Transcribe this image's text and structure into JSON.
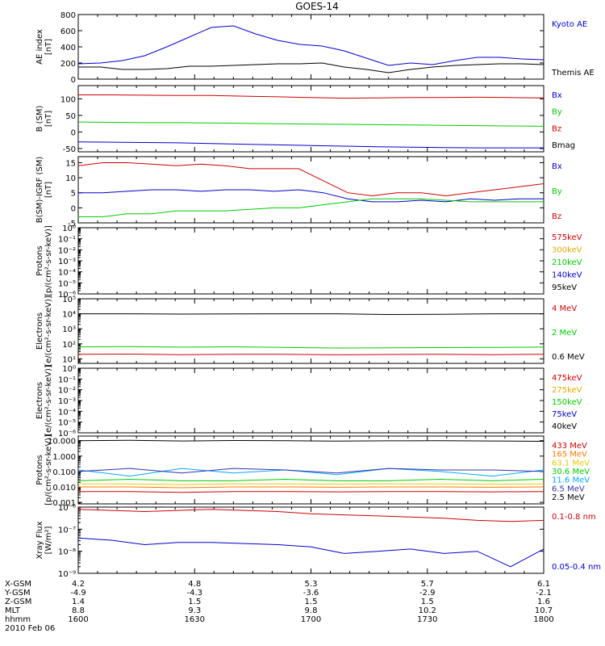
{
  "title": "GOES-14",
  "panels": [
    {
      "ylabel": [
        "AE index",
        "[nT]"
      ],
      "scale": "linear",
      "ylim": [
        0,
        800
      ],
      "ticks": [
        0,
        200,
        400,
        600,
        800
      ],
      "tick_labels": [
        "0",
        "200",
        "400",
        "600",
        "800"
      ],
      "series": [
        {
          "name": "Kyoto AE",
          "color": "#0000cc",
          "label_row": 0,
          "values": [
            190,
            200,
            230,
            290,
            400,
            520,
            640,
            660,
            560,
            480,
            430,
            410,
            350,
            260,
            170,
            200,
            180,
            230,
            270,
            270,
            250,
            240
          ]
        },
        {
          "name": "Themis AE",
          "color": "#000000",
          "label_row": 1,
          "values": [
            150,
            150,
            120,
            120,
            130,
            160,
            160,
            170,
            180,
            190,
            190,
            200,
            150,
            120,
            80,
            120,
            150,
            170,
            180,
            190,
            190,
            180
          ]
        }
      ],
      "legend": [
        {
          "text": "Kyoto AE",
          "color": "#0000cc"
        },
        {
          "text": "Themis AE",
          "color": "#000000"
        }
      ]
    },
    {
      "ylabel": [
        "B (SM)",
        "[nT]"
      ],
      "scale": "linear",
      "ylim": [
        -60,
        140
      ],
      "ticks": [
        -50,
        0,
        50,
        100
      ],
      "tick_labels": [
        "-50",
        "0",
        "50",
        "100"
      ],
      "series": [
        {
          "name": "Bz",
          "color": "#cc0000",
          "values": [
            112,
            112,
            111,
            110,
            110,
            108,
            106,
            104,
            102,
            103,
            104,
            104,
            105,
            104,
            103
          ]
        },
        {
          "name": "By",
          "color": "#00cc00",
          "values": [
            30,
            29,
            28,
            28,
            27,
            26,
            25,
            24,
            23,
            22,
            21,
            20,
            19,
            18,
            17
          ]
        },
        {
          "name": "Bx",
          "color": "#0000cc",
          "values": [
            -30,
            -31,
            -32,
            -33,
            -35,
            -37,
            -39,
            -41,
            -43,
            -45,
            -46,
            -47,
            -48,
            -48,
            -48
          ]
        }
      ],
      "legend": [
        {
          "text": "Bx",
          "color": "#0000cc"
        },
        {
          "text": "By",
          "color": "#00cc00"
        },
        {
          "text": "Bz",
          "color": "#cc0000"
        },
        {
          "text": "Bmag",
          "color": "#000000"
        }
      ]
    },
    {
      "ylabel": [
        "B(SM)-IGRF (SM)",
        "[nT]"
      ],
      "scale": "linear",
      "ylim": [
        -5,
        17
      ],
      "ticks": [
        -5,
        0,
        5,
        10,
        15
      ],
      "tick_labels": [
        "-5",
        "0",
        "5",
        "10",
        "15"
      ],
      "series": [
        {
          "name": "Bz",
          "color": "#cc0000",
          "values": [
            14,
            15,
            15,
            14.5,
            14,
            14.5,
            14,
            13,
            13,
            13,
            9,
            5,
            4,
            5,
            5,
            4,
            5,
            6,
            7,
            8
          ]
        },
        {
          "name": "Bx",
          "color": "#0000cc",
          "values": [
            5,
            5,
            5.5,
            6,
            6,
            5.5,
            6,
            6,
            5.5,
            6,
            5,
            3,
            2,
            2,
            2.5,
            2,
            3,
            2.5,
            3,
            3
          ]
        },
        {
          "name": "By",
          "color": "#00cc00",
          "values": [
            -3,
            -3,
            -2,
            -2,
            -1,
            -1,
            -1,
            -0.5,
            0,
            0,
            1,
            2,
            3,
            3,
            3,
            2.5,
            2,
            2,
            2,
            2
          ]
        }
      ],
      "legend": [
        {
          "text": "Bx",
          "color": "#0000cc"
        },
        {
          "text": "By",
          "color": "#00cc00"
        },
        {
          "text": "Bz",
          "color": "#cc0000"
        }
      ]
    },
    {
      "ylabel": [
        "Protons",
        "[p/(cm²-s-sr-keV)]"
      ],
      "scale": "log",
      "ylim": [
        -6,
        0
      ],
      "ticks": [
        -6,
        -5,
        -4,
        -3,
        -2,
        -1,
        0
      ],
      "tick_labels": [
        "10⁻⁶",
        "10⁻⁵",
        "10⁻⁴",
        "10⁻³",
        "10⁻²",
        "10⁻¹",
        "10⁰"
      ],
      "series": [],
      "legend": [
        {
          "text": "575keV",
          "color": "#cc0000"
        },
        {
          "text": "300keV",
          "color": "#e6a800"
        },
        {
          "text": "210keV",
          "color": "#00cc00"
        },
        {
          "text": "140keV",
          "color": "#0000cc"
        },
        {
          "text": "95keV",
          "color": "#000000"
        }
      ]
    },
    {
      "ylabel": [
        "Electrons",
        "[e/(cm²-s-sr-keV)]"
      ],
      "scale": "log",
      "ylim": [
        0.7,
        5
      ],
      "ticks": [
        1,
        2,
        3,
        4,
        5
      ],
      "tick_labels": [
        "10¹",
        "10²",
        "10³",
        "10⁴",
        "10⁵"
      ],
      "series": [
        {
          "name": "0.6 MeV",
          "color": "#000000",
          "values": [
            4.0,
            4.0,
            3.98,
            3.99,
            4.0,
            4.0,
            3.95,
            3.97,
            4.0,
            4.0
          ]
        },
        {
          "name": "2 MeV",
          "color": "#00cc00",
          "values": [
            1.8,
            1.82,
            1.78,
            1.8,
            1.76,
            1.72,
            1.74,
            1.75,
            1.76,
            1.78
          ]
        },
        {
          "name": "4 MeV",
          "color": "#cc0000",
          "values": [
            1.3,
            1.32,
            1.28,
            1.31,
            1.3,
            1.27,
            1.29,
            1.3,
            1.28,
            1.3
          ]
        }
      ],
      "legend": [
        {
          "text": "4 MeV",
          "color": "#cc0000"
        },
        {
          "text": "2 MeV",
          "color": "#00cc00"
        },
        {
          "text": "0.6 MeV",
          "color": "#000000"
        }
      ]
    },
    {
      "ylabel": [
        "Electrons",
        "[e/(cm²-s-sr-keV)]"
      ],
      "scale": "log",
      "ylim": [
        -6,
        0
      ],
      "ticks": [
        -6,
        -5,
        -4,
        -3,
        -2,
        -1,
        0
      ],
      "tick_labels": [
        "10⁻⁶",
        "10⁻⁵",
        "10⁻⁴",
        "10⁻³",
        "10⁻²",
        "10⁻¹",
        "10⁰"
      ],
      "series": [],
      "legend": [
        {
          "text": "475keV",
          "color": "#cc0000"
        },
        {
          "text": "275keV",
          "color": "#e6a800"
        },
        {
          "text": "150keV",
          "color": "#00cc00"
        },
        {
          "text": "75keV",
          "color": "#0000cc"
        },
        {
          "text": "40keV",
          "color": "#000000"
        }
      ]
    },
    {
      "ylabel": [
        "Protons",
        "[p/(cm²-s-sr-keV)]"
      ],
      "scale": "log",
      "ylim": [
        -3.1,
        1.3
      ],
      "ticks": [
        -3,
        -2,
        -1,
        0,
        1
      ],
      "tick_labels": [
        "0.001",
        "0.010",
        "0.100",
        "1.000",
        "10.000"
      ],
      "series": [
        {
          "name": "2.5 MeV",
          "color": "#000000",
          "values": [
            1.0,
            1.02,
            0.98,
            1.01,
            1.0,
            0.97,
            0.99,
            1.0,
            0.98,
            0.96
          ]
        },
        {
          "name": "11.6 MeV",
          "color": "#00aaff",
          "values": [
            -0.9,
            -1.3,
            -0.8,
            -1.1,
            -0.9,
            -1.2,
            -0.8,
            -1.0,
            -1.3,
            -0.9
          ]
        },
        {
          "name": "6.5 MeV",
          "color": "#3333aa",
          "values": [
            -1.0,
            -0.8,
            -1.1,
            -0.8,
            -0.9,
            -1.1,
            -0.8,
            -0.9,
            -0.9,
            -1.0
          ]
        },
        {
          "name": "30.6 MeV",
          "color": "#00cc00",
          "values": [
            -1.6,
            -1.5,
            -1.6,
            -1.6,
            -1.5,
            -1.6,
            -1.6,
            -1.5,
            -1.6,
            -1.5
          ]
        },
        {
          "name": "63.1 MeV",
          "color": "#e6c800",
          "values": [
            -1.8,
            -1.8,
            -1.85,
            -1.8,
            -1.8,
            -1.82,
            -1.8,
            -1.8,
            -1.82,
            -1.8
          ]
        },
        {
          "name": "165 MeV",
          "color": "#ff7700",
          "values": [
            -2.0,
            -2.0,
            -2.05,
            -2.0,
            -2.0,
            -2.02,
            -2.0,
            -2.0,
            -2.02,
            -2.0
          ]
        },
        {
          "name": "433 MeV",
          "color": "#cc0000",
          "values": [
            -2.3,
            -2.3,
            -2.35,
            -2.3,
            -2.3,
            -2.32,
            -2.3,
            -2.3,
            -2.32,
            -2.3
          ]
        }
      ],
      "legend": [
        {
          "text": "433 MeV",
          "color": "#cc0000"
        },
        {
          "text": "165 MeV",
          "color": "#ff7700"
        },
        {
          "text": "63.1 MeV",
          "color": "#e6c800"
        },
        {
          "text": "30.6 MeV",
          "color": "#00cc00"
        },
        {
          "text": "11.6 MeV",
          "color": "#00aaff"
        },
        {
          "text": "6.5 MeV",
          "color": "#3333aa"
        },
        {
          "text": "2.5 MeV",
          "color": "#000000"
        }
      ]
    },
    {
      "ylabel": [
        "Xray Flux",
        "[W/m²]"
      ],
      "scale": "log",
      "ylim": [
        -9,
        -6
      ],
      "ticks": [
        -9,
        -8,
        -7,
        -6
      ],
      "tick_labels": [
        "10⁻⁹",
        "10⁻⁸",
        "10⁻⁷",
        "10⁻⁶"
      ],
      "series": [
        {
          "name": "0.1-0.8 nm",
          "color": "#cc0000",
          "values": [
            -6.1,
            -6.15,
            -6.2,
            -6.15,
            -6.1,
            -6.15,
            -6.2,
            -6.3,
            -6.35,
            -6.4,
            -6.45,
            -6.5,
            -6.6,
            -6.65,
            -6.6
          ]
        },
        {
          "name": "0.05-0.4 nm",
          "color": "#0000cc",
          "values": [
            -7.4,
            -7.5,
            -7.7,
            -7.6,
            -7.6,
            -7.65,
            -7.7,
            -7.8,
            -8.1,
            -8.0,
            -7.9,
            -8.1,
            -8.0,
            -8.7,
            -7.9
          ]
        }
      ],
      "legend": [
        {
          "text": "0.1-0.8 nm",
          "color": "#cc0000"
        },
        {
          "text": "0.05-0.4 nm",
          "color": "#0000cc"
        }
      ]
    }
  ],
  "bottom_axis": {
    "row_labels": [
      "X-GSM",
      "Y-GSM",
      "Z-GSM",
      "MLT",
      "hhmm",
      "2010 Feb 06"
    ],
    "ticks": [
      {
        "values": [
          "4.2",
          "-4.9",
          "1.4",
          "8.8",
          "1600"
        ]
      },
      {
        "values": [
          "4.8",
          "-4.3",
          "1.5",
          "9.3",
          "1630"
        ]
      },
      {
        "values": [
          "5.3",
          "-3.6",
          "1.5",
          "9.8",
          "1700"
        ]
      },
      {
        "values": [
          "5.7",
          "-2.9",
          "1.5",
          "10.2",
          "1730"
        ]
      },
      {
        "values": [
          "6.1",
          "-2.1",
          "1.6",
          "10.7",
          "1800"
        ]
      }
    ]
  },
  "chart_data": {
    "type": "line",
    "title": "GOES-14",
    "x": [
      "1600",
      "1630",
      "1700",
      "1730",
      "1800"
    ],
    "xlabel": "hhmm"
  }
}
